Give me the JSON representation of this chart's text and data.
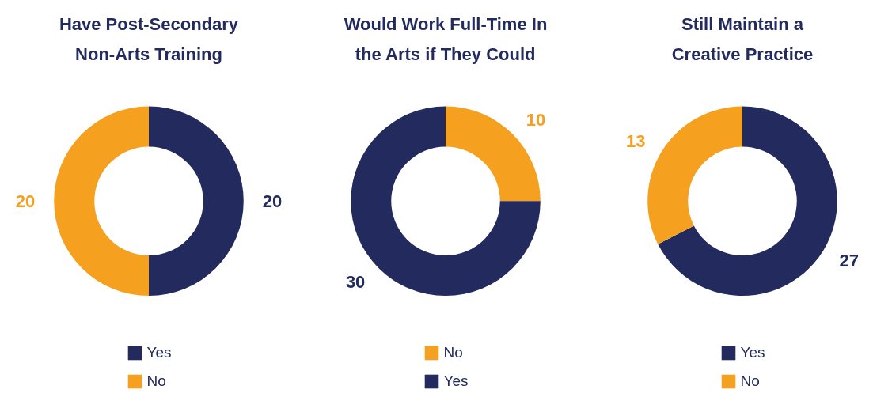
{
  "chart_data": [
    {
      "type": "donut",
      "title": "Have Post-Secondary\nNon-Arts Training",
      "categories": [
        "Yes",
        "No"
      ],
      "values": [
        20,
        20
      ],
      "colors": [
        "#232a5e",
        "#f5a01f"
      ],
      "data_labels": true,
      "legend": "bottom"
    },
    {
      "type": "donut",
      "title": "Would Work Full-Time In\nthe Arts if They Could",
      "categories": [
        "No",
        "Yes"
      ],
      "values": [
        10,
        30
      ],
      "colors": [
        "#f5a01f",
        "#232a5e"
      ],
      "data_labels": true,
      "legend": "bottom"
    },
    {
      "type": "donut",
      "title": "Still Maintain a\nCreative Practice",
      "categories": [
        "Yes",
        "No"
      ],
      "values": [
        27,
        13
      ],
      "colors": [
        "#232a5e",
        "#f5a01f"
      ],
      "data_labels": true,
      "legend": "bottom"
    }
  ]
}
